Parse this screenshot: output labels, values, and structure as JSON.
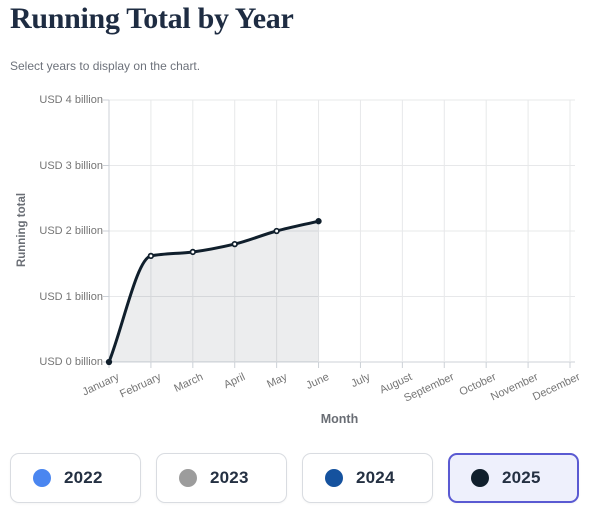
{
  "header": {
    "title": "Running Total by Year",
    "subtitle": "Select years to display on the chart."
  },
  "chart_data": {
    "type": "area",
    "title": "Running Total by Year",
    "xlabel": "Month",
    "ylabel": "Running total",
    "categories": [
      "January",
      "February",
      "March",
      "April",
      "May",
      "June",
      "July",
      "August",
      "September",
      "October",
      "November",
      "December"
    ],
    "y_ticks": [
      "USD 0 billion",
      "USD 1 billion",
      "USD 2 billion",
      "USD 3 billion",
      "USD 4 billion"
    ],
    "ylim": [
      0,
      4
    ],
    "grid": true,
    "legend_position": "bottom-buttons",
    "series": [
      {
        "name": "2025",
        "color": "#101f2c",
        "fill": "rgba(16,31,44,0.08)",
        "values": [
          0,
          1.62,
          1.68,
          1.8,
          2.0,
          2.15,
          null,
          null,
          null,
          null,
          null,
          null
        ]
      }
    ]
  },
  "legend": {
    "years": [
      {
        "label": "2022",
        "color": "#4a86f0",
        "selected": false
      },
      {
        "label": "2023",
        "color": "#9c9c9c",
        "selected": false
      },
      {
        "label": "2024",
        "color": "#15529e",
        "selected": false
      },
      {
        "label": "2025",
        "color": "#101f2c",
        "selected": true
      }
    ],
    "selected_border": "#5a5ad2",
    "selected_bg": "#eef0fc"
  },
  "colors": {
    "gridline": "#e7e8ea",
    "axis": "#ccd1d7",
    "tick_label": "#757575"
  }
}
